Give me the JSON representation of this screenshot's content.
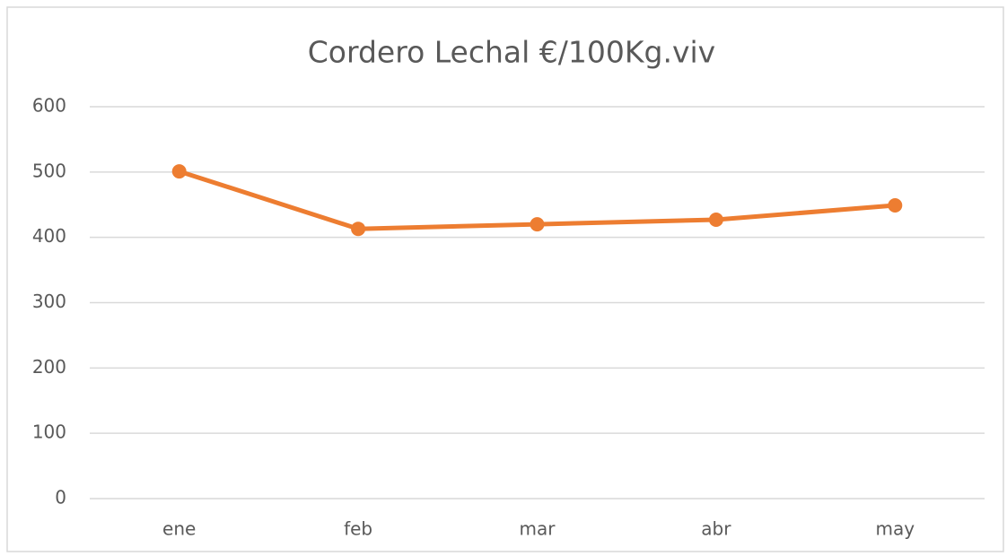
{
  "chart_data": {
    "type": "line",
    "title": "Cordero Lechal €/100Kg.viv",
    "categories": [
      "ene",
      "feb",
      "mar",
      "abr",
      "may"
    ],
    "series": [
      {
        "name": "Cordero Lechal €/100Kg.viv",
        "color": "#ed7d31",
        "values": [
          501,
          413,
          420,
          427,
          449
        ]
      }
    ],
    "ylim": [
      0,
      600
    ],
    "yticks": [
      0,
      100,
      200,
      300,
      400,
      500,
      600
    ],
    "grid": true
  }
}
